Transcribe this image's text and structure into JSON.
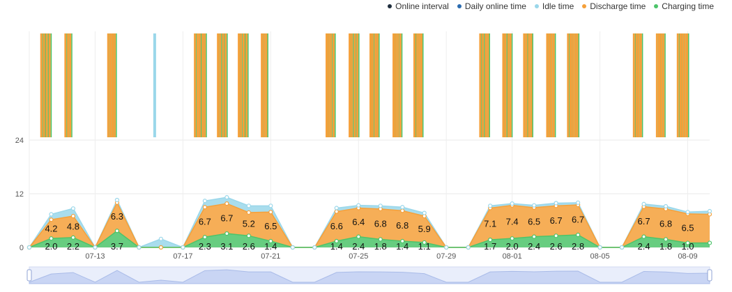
{
  "legend": [
    {
      "label": "Online interval",
      "color": "#1f2e3d"
    },
    {
      "label": "Daily online time",
      "color": "#2b6cb0"
    },
    {
      "label": "Idle time",
      "color": "#9ad7ea"
    },
    {
      "label": "Discharge time",
      "color": "#f5a03a"
    },
    {
      "label": "Charging time",
      "color": "#4cc46a"
    }
  ],
  "chart_data": {
    "type": "area",
    "stacked": true,
    "y_axis": {
      "ticks": [
        0,
        12,
        24
      ],
      "range": [
        0,
        24
      ],
      "upper_band": "online-interval timeline (hours of day)"
    },
    "x_axis": {
      "range_days": [
        0,
        31
      ],
      "tick_labels": [
        "07-13",
        "07-17",
        "07-21",
        "07-25",
        "07-29",
        "08-01",
        "08-05",
        "08-09"
      ],
      "tick_days": [
        3,
        7,
        11,
        15,
        19,
        22,
        26,
        30
      ]
    },
    "series": [
      {
        "name": "Charging time",
        "color": "#4cc46a",
        "values": [
          0,
          2.0,
          2.2,
          0,
          3.7,
          0,
          0,
          0,
          2.3,
          3.1,
          2.6,
          1.4,
          0,
          0,
          1.4,
          2.4,
          1.8,
          1.4,
          1.1,
          0,
          0,
          1.7,
          2.0,
          2.4,
          2.6,
          2.8,
          0,
          0,
          2.4,
          1.8,
          1.0,
          1.0
        ]
      },
      {
        "name": "Discharge time",
        "color": "#f5a03a",
        "values": [
          0,
          4.2,
          4.8,
          0,
          6.3,
          0,
          0,
          0,
          6.7,
          6.7,
          5.2,
          6.5,
          0,
          0,
          6.6,
          6.4,
          6.8,
          6.8,
          5.9,
          0,
          0,
          7.1,
          7.4,
          6.5,
          6.7,
          6.7,
          0,
          0,
          6.7,
          6.8,
          6.5,
          6.4
        ]
      },
      {
        "name": "Idle time",
        "color": "#9ad7ea",
        "values": [
          0,
          1.2,
          1.7,
          0,
          0.6,
          0,
          1.9,
          0,
          1.4,
          1.4,
          1.5,
          1.4,
          0,
          0,
          0.8,
          0.6,
          0.7,
          0.8,
          0.7,
          0,
          0,
          0.5,
          0.4,
          0.5,
          0.6,
          0.5,
          0,
          0,
          0.6,
          0.6,
          0.4,
          0.7
        ]
      }
    ],
    "labels": {
      "charging": [
        "2.0",
        "2.2",
        "3.7",
        "2.3",
        "3.1",
        "2.6",
        "1.4",
        "1.4",
        "2.4",
        "1.8",
        "1.4",
        "1.1",
        "1.7",
        "2.0",
        "2.4",
        "2.6",
        "2.8",
        "2.4",
        "1.8",
        "1.0"
      ],
      "discharge": [
        "4.2",
        "4.8",
        "6.3",
        "6.7",
        "6.7",
        "5.2",
        "6.5",
        "6.6",
        "6.4",
        "6.8",
        "6.8",
        "5.9",
        "7.1",
        "7.4",
        "6.5",
        "6.7",
        "6.7",
        "6.7",
        "6.8",
        "6.5"
      ]
    },
    "label_days": {
      "charging": [
        1,
        2,
        4,
        8,
        9,
        10,
        11,
        14,
        15,
        16,
        17,
        18,
        21,
        22,
        23,
        24,
        25,
        28,
        29,
        30
      ],
      "discharge": [
        1,
        2,
        4,
        8,
        9,
        10,
        11,
        14,
        15,
        16,
        17,
        18,
        21,
        22,
        23,
        24,
        25,
        28,
        29,
        30
      ]
    },
    "online_intervals": [
      {
        "day": 1,
        "offsets": [
          0.0,
          0.12,
          0.25,
          0.38
        ]
      },
      {
        "day": 2,
        "offsets": [
          0.1,
          0.22,
          0.32
        ]
      },
      {
        "day": 4,
        "offsets": [
          0.05,
          0.15,
          0.25,
          0.35
        ]
      },
      {
        "day": 6,
        "offsets": [
          0.15
        ],
        "kind": "idle"
      },
      {
        "day": 8,
        "offsets": [
          0.0,
          0.12,
          0.22,
          0.35,
          0.45
        ]
      },
      {
        "day": 9,
        "offsets": [
          0.05,
          0.15,
          0.28,
          0.4
        ]
      },
      {
        "day": 10,
        "offsets": [
          0.0,
          0.1,
          0.22,
          0.35
        ]
      },
      {
        "day": 11,
        "offsets": [
          0.05,
          0.15,
          0.25
        ]
      },
      {
        "day": 14,
        "offsets": [
          0.0,
          0.1,
          0.2,
          0.32
        ]
      },
      {
        "day": 15,
        "offsets": [
          0.05,
          0.15,
          0.28,
          0.4
        ]
      },
      {
        "day": 16,
        "offsets": [
          0.0,
          0.1,
          0.22,
          0.32
        ]
      },
      {
        "day": 17,
        "offsets": [
          0.05,
          0.15,
          0.25,
          0.36
        ]
      },
      {
        "day": 18,
        "offsets": [
          0.0,
          0.12,
          0.22,
          0.32
        ]
      },
      {
        "day": 21,
        "offsets": [
          0.0,
          0.12,
          0.25,
          0.35
        ]
      },
      {
        "day": 22,
        "offsets": [
          0.05,
          0.15,
          0.28,
          0.38
        ]
      },
      {
        "day": 23,
        "offsets": [
          0.0,
          0.1,
          0.22,
          0.32
        ]
      },
      {
        "day": 24,
        "offsets": [
          0.05,
          0.15,
          0.25,
          0.35
        ]
      },
      {
        "day": 25,
        "offsets": [
          0.0,
          0.12,
          0.22,
          0.32,
          0.42
        ]
      },
      {
        "day": 28,
        "offsets": [
          0.0,
          0.12,
          0.22,
          0.32
        ]
      },
      {
        "day": 29,
        "offsets": [
          0.05,
          0.15,
          0.25,
          0.35
        ]
      },
      {
        "day": 30,
        "offsets": [
          0.0,
          0.12,
          0.22,
          0.32,
          0.42
        ]
      }
    ]
  }
}
